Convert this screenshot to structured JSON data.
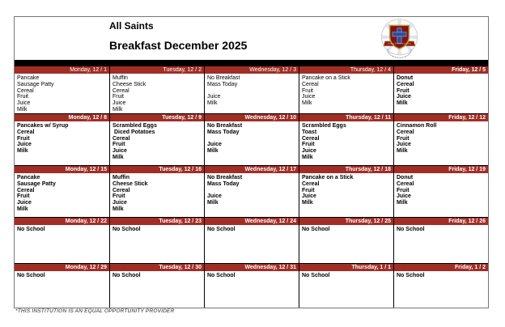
{
  "page": {
    "title_line1": "All Saints",
    "title_line2": "Breakfast December 2025",
    "footer": "*THIS INSTITUTION IS AN EQUAL OPPORTUNITY PROVIDER"
  },
  "logo": {
    "name": "all-saints-school-crest"
  },
  "colors": {
    "band_background": "#A02E26",
    "band_text": "#FFFFFF",
    "top_bar": "#000000",
    "crest_shield": "#7E1416",
    "crest_cross": "#2A4D9B",
    "crest_gold": "#C79A3B"
  },
  "calendar": {
    "weeks": [
      {
        "days": [
          {
            "date_label": "Monday, 12 / 1",
            "header_bold": false,
            "items_bold": false,
            "items": [
              "Pancake",
              "Sausage Patty",
              "Cereal",
              "Fruit",
              "Juice",
              "Milk"
            ]
          },
          {
            "date_label": "Tuesday, 12 / 2",
            "header_bold": false,
            "items_bold": false,
            "items": [
              "Muffin",
              "Cheese Stick",
              "Cereal",
              "Fruit",
              "Juice",
              "Milk"
            ]
          },
          {
            "date_label": "Wednesday, 12 / 3",
            "header_bold": false,
            "items_bold": false,
            "items": [
              "No Breakfast",
              "Mass Today",
              "",
              "Juice",
              "Milk"
            ]
          },
          {
            "date_label": "Thursday, 12 / 4",
            "header_bold": false,
            "items_bold": false,
            "items": [
              "Pancake on a Stick",
              "Cereal",
              "Fruit",
              "Juice",
              "Milk"
            ]
          },
          {
            "date_label": "Friday, 12 / 5",
            "header_bold": true,
            "items_bold": true,
            "items": [
              "Donut",
              "Cereal",
              "Fruit",
              "Juice",
              "Milk"
            ]
          }
        ]
      },
      {
        "days": [
          {
            "date_label": "Monday, 12 / 8",
            "header_bold": true,
            "items_bold": true,
            "items": [
              "Pancakes w/ Syrup",
              "Cereal",
              "Fruit",
              "Juice",
              "Milk"
            ]
          },
          {
            "date_label": "Tuesday, 12 / 9",
            "header_bold": true,
            "items_bold": true,
            "items": [
              "Scrambled Eggs",
              " Diced Potatoes",
              "Cereal",
              "Fruit",
              "Juice",
              "Milk"
            ]
          },
          {
            "date_label": "Wednesday, 12 / 10",
            "header_bold": true,
            "items_bold": true,
            "items": [
              "No Breakfast",
              "Mass Today",
              "",
              "Juice",
              "Milk"
            ]
          },
          {
            "date_label": "Thursday, 12 / 11",
            "header_bold": true,
            "items_bold": true,
            "items": [
              "Scrambled Eggs",
              "Toast",
              "Cereal",
              "Fruit",
              "Juice",
              "Milk"
            ]
          },
          {
            "date_label": "Friday, 12 / 12",
            "header_bold": true,
            "items_bold": true,
            "items": [
              "Cinnamon Roll",
              "Cereal",
              "Fruit",
              "Juice",
              "Milk"
            ]
          }
        ]
      },
      {
        "days": [
          {
            "date_label": "Monday, 12 / 15",
            "header_bold": true,
            "items_bold": true,
            "items": [
              "Pancake",
              "Sausage Patty",
              "Cereal",
              "Fruit",
              "Juice",
              "Milk"
            ]
          },
          {
            "date_label": "Tuesday, 12 / 16",
            "header_bold": true,
            "items_bold": true,
            "items": [
              "Muffin",
              "Cheese Stick",
              "Cereal",
              "Fruit",
              "Juice",
              "Milk"
            ]
          },
          {
            "date_label": "Wednesday, 12 / 17",
            "header_bold": true,
            "items_bold": true,
            "items": [
              "No Breakfast",
              "Mass Today",
              "",
              "Juice",
              "Milk"
            ]
          },
          {
            "date_label": "Thursday, 12 / 18",
            "header_bold": true,
            "items_bold": true,
            "items": [
              "Pancake on a Stick",
              "Cereal",
              "Fruit",
              "Juice",
              "Milk"
            ]
          },
          {
            "date_label": "Friday, 12 / 19",
            "header_bold": true,
            "items_bold": true,
            "items": [
              "Donut",
              "Cereal",
              "Fruit",
              "Juice",
              "Milk"
            ]
          }
        ]
      },
      {
        "days": [
          {
            "date_label": "Monday, 12 / 22",
            "header_bold": true,
            "items_bold": true,
            "items": [
              "No School"
            ]
          },
          {
            "date_label": "Tuesday, 12 / 23",
            "header_bold": true,
            "items_bold": true,
            "items": [
              "No School"
            ]
          },
          {
            "date_label": "Wednesday, 12 / 24",
            "header_bold": true,
            "items_bold": true,
            "items": [
              "No School"
            ]
          },
          {
            "date_label": "Thursday, 12 / 25",
            "header_bold": true,
            "items_bold": true,
            "items": [
              "No School"
            ]
          },
          {
            "date_label": "Friday, 12 / 26",
            "header_bold": true,
            "items_bold": true,
            "items": [
              "No School"
            ]
          }
        ]
      },
      {
        "days": [
          {
            "date_label": "Monday, 12 / 29",
            "header_bold": true,
            "items_bold": true,
            "items": [
              "No School"
            ]
          },
          {
            "date_label": "Tuesday, 12 / 30",
            "header_bold": true,
            "items_bold": true,
            "items": [
              "No School"
            ]
          },
          {
            "date_label": "Wednesday, 12 / 31",
            "header_bold": true,
            "items_bold": true,
            "items": [
              "No School"
            ]
          },
          {
            "date_label": "Thursday, 1 / 1",
            "header_bold": true,
            "items_bold": true,
            "items": [
              "No School"
            ]
          },
          {
            "date_label": "Friday, 1 / 2",
            "header_bold": true,
            "items_bold": true,
            "items": [
              "No School"
            ]
          }
        ]
      }
    ]
  }
}
